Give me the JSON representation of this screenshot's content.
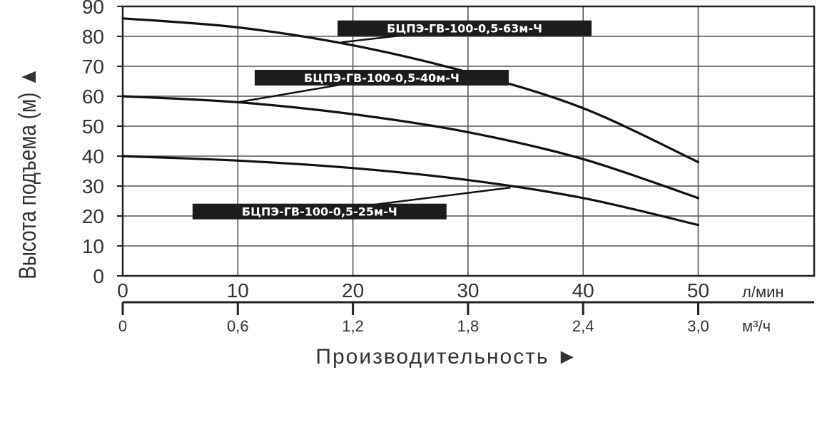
{
  "chart_data": {
    "type": "line",
    "ylabel": "Высота подъема (м) ▲",
    "xlabel": "Производительность ►",
    "x_unit_primary": "л/мин",
    "x_unit_secondary": "м³/ч",
    "xlim": [
      0,
      60
    ],
    "ylim": [
      0,
      90
    ],
    "x_ticks_primary": [
      "0",
      "10",
      "20",
      "30",
      "40",
      "50"
    ],
    "x_ticks_primary_values": [
      0,
      10,
      20,
      30,
      40,
      50
    ],
    "x_ticks_secondary": [
      "0",
      "0,6",
      "1,2",
      "1,8",
      "2,4",
      "3,0"
    ],
    "y_ticks": [
      "0",
      "10",
      "20",
      "30",
      "40",
      "50",
      "60",
      "70",
      "80",
      "90"
    ],
    "y_ticks_values": [
      0,
      10,
      20,
      30,
      40,
      50,
      60,
      70,
      80,
      90
    ],
    "grid": true,
    "series": [
      {
        "name": "БЦПЭ-ГВ-100-0,5-63м-Ч",
        "x": [
          0,
          10,
          20,
          30,
          40,
          50
        ],
        "y": [
          86,
          83,
          77,
          68,
          56,
          38
        ],
        "label_x": 29.7,
        "label_y": 82.7,
        "leader_to": [
          19,
          78
        ]
      },
      {
        "name": "БЦПЭ-ГВ-100-0,5-40м-Ч",
        "x": [
          0,
          10,
          20,
          30,
          40,
          50
        ],
        "y": [
          60,
          58,
          54,
          48,
          39,
          26
        ],
        "label_x": 22.5,
        "label_y": 66.2,
        "leader_to": [
          10,
          58
        ]
      },
      {
        "name": "БЦПЭ-ГВ-100-0,5-25м-Ч",
        "x": [
          0,
          10,
          20,
          30,
          40,
          50
        ],
        "y": [
          40,
          38.5,
          36,
          32,
          26,
          17
        ],
        "label_x": 17.1,
        "label_y": 21.5,
        "leader_to": [
          33.7,
          29.5
        ]
      }
    ]
  }
}
